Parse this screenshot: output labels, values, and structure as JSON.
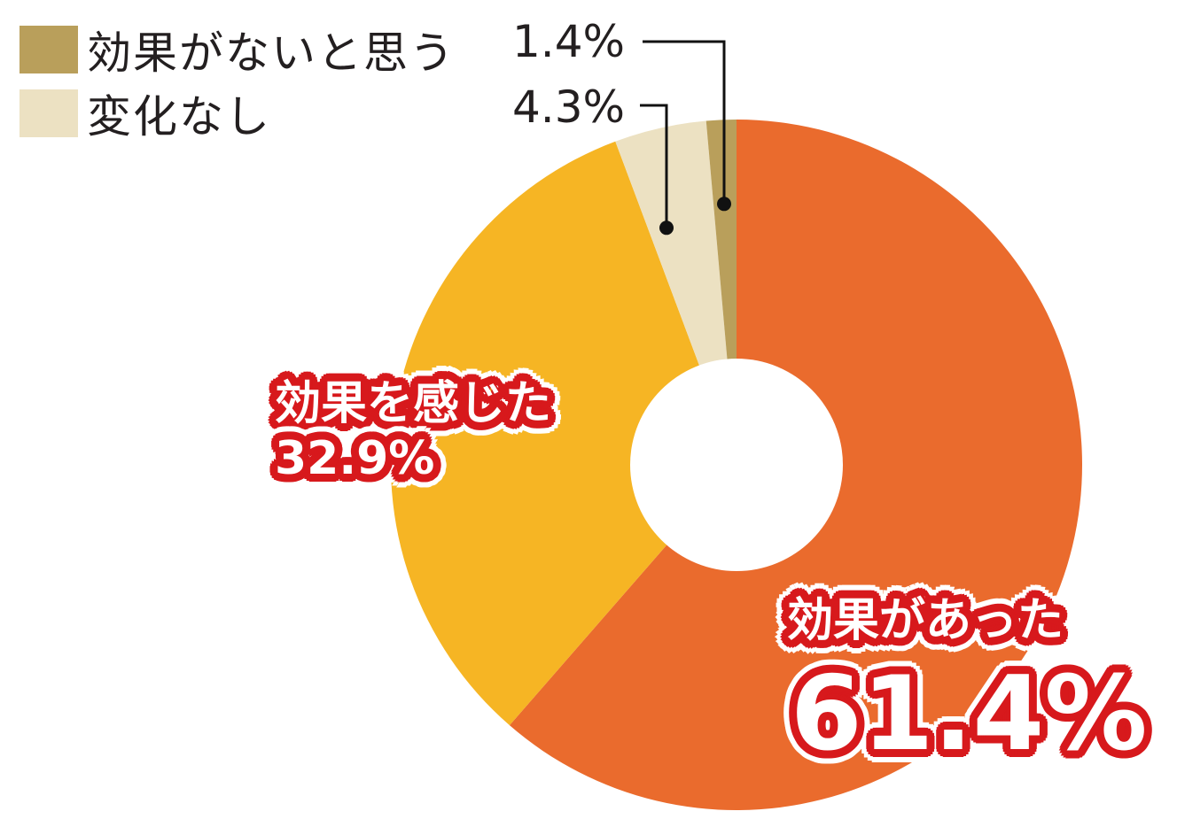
{
  "chart_data": {
    "type": "pie",
    "donut": true,
    "start": "top (12 o'clock), clockwise",
    "slices": [
      {
        "label": "効果があった",
        "value": 61.4,
        "value_text": "61.4%",
        "color": "#ea6b2d"
      },
      {
        "label": "効果を感じた",
        "value": 32.9,
        "value_text": "32.9%",
        "color": "#f6b524"
      },
      {
        "label": "変化なし",
        "value": 4.3,
        "value_text": "4.3%",
        "color": "#ece1c2"
      },
      {
        "label": "効果がないと思う",
        "value": 1.4,
        "value_text": "1.4%",
        "color": "#b99f5b"
      }
    ],
    "legend": [
      {
        "label": "効果がないと思う",
        "color": "#b99f5b"
      },
      {
        "label": "変化なし",
        "color": "#ece1c2"
      }
    ],
    "label_badge_color": "#d7191c",
    "label_outline_color": "#ffffff",
    "leader_line_color": "#111111"
  }
}
